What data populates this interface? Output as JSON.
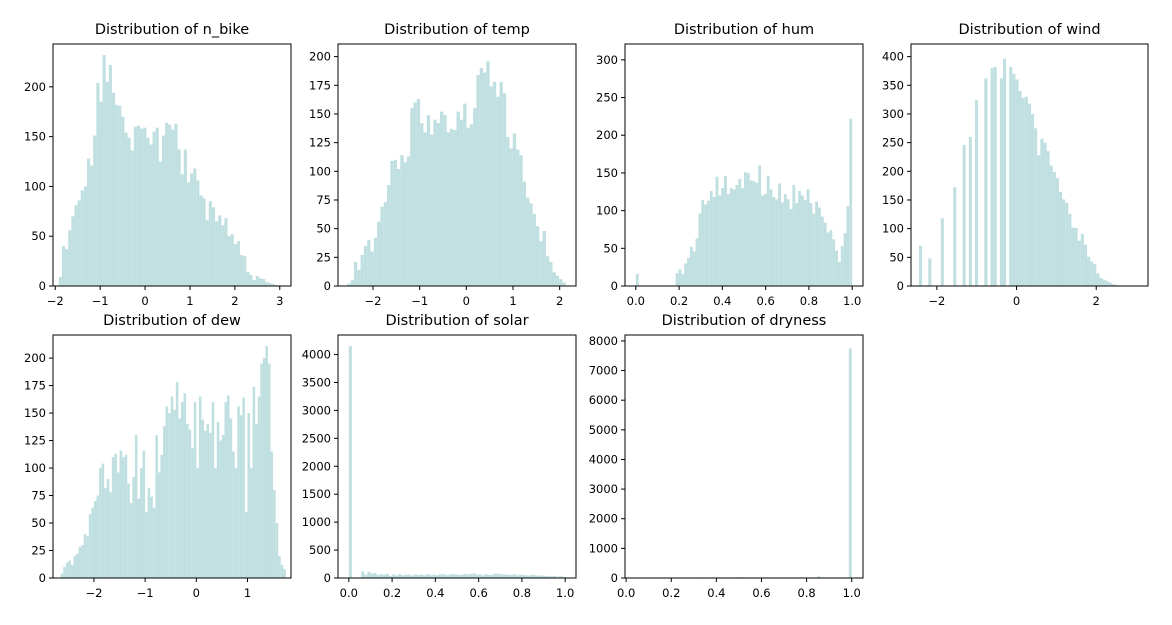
{
  "colors": {
    "bar": "#c0dfe0",
    "axes": "#000000",
    "background": "#ffffff"
  },
  "chart_data": [
    {
      "type": "histogram",
      "title": "Distribution of n_bike",
      "xlim": [
        -2.05,
        3.25
      ],
      "ylim": [
        0,
        243
      ],
      "xticks": [
        -2,
        -1,
        0,
        1,
        2,
        3
      ],
      "xtick_labels": [
        "−2",
        "−1",
        "0",
        "1",
        "2",
        "3"
      ],
      "yticks": [
        0,
        50,
        100,
        150,
        200
      ],
      "ytick_labels": [
        "0",
        "50",
        "100",
        "150",
        "200"
      ],
      "bin_edges": [
        -1.92,
        2.95
      ],
      "counts": [
        9,
        40,
        37,
        56,
        70,
        81,
        86,
        96,
        100,
        128,
        121,
        151,
        204,
        185,
        232,
        205,
        222,
        194,
        182,
        181,
        170,
        154,
        149,
        136,
        160,
        161,
        158,
        159,
        149,
        142,
        155,
        159,
        125,
        151,
        164,
        162,
        157,
        163,
        137,
        112,
        137,
        104,
        113,
        118,
        106,
        91,
        88,
        66,
        85,
        79,
        65,
        71,
        61,
        68,
        50,
        52,
        42,
        45,
        31,
        30,
        14,
        11,
        6,
        10,
        8,
        7,
        4,
        3,
        2,
        1
      ]
    },
    {
      "type": "histogram",
      "title": "Distribution of temp",
      "xlim": [
        -2.75,
        2.35
      ],
      "ylim": [
        0,
        211
      ],
      "xticks": [
        -2,
        -1,
        0,
        1,
        2
      ],
      "xtick_labels": [
        "−2",
        "−1",
        "0",
        "1",
        "2"
      ],
      "yticks": [
        0,
        25,
        50,
        75,
        100,
        125,
        150,
        175,
        200
      ],
      "ytick_labels": [
        "0",
        "25",
        "50",
        "75",
        "100",
        "125",
        "150",
        "175",
        "200"
      ],
      "bin_edges": [
        -2.55,
        2.13
      ],
      "counts": [
        2,
        5,
        21,
        14,
        27,
        35,
        40,
        30,
        42,
        56,
        69,
        73,
        88,
        109,
        110,
        102,
        114,
        108,
        113,
        155,
        160,
        163,
        142,
        134,
        149,
        132,
        145,
        142,
        152,
        149,
        134,
        137,
        136,
        152,
        145,
        159,
        138,
        141,
        155,
        184,
        190,
        186,
        196,
        174,
        178,
        165,
        178,
        168,
        130,
        120,
        133,
        119,
        114,
        91,
        77,
        72,
        63,
        52,
        39,
        48,
        26,
        21,
        12,
        9,
        6,
        3
      ]
    },
    {
      "type": "histogram",
      "title": "Distribution of hum",
      "xlim": [
        -0.05,
        1.05
      ],
      "ylim": [
        0,
        321
      ],
      "xticks": [
        0,
        0.2,
        0.4,
        0.6,
        0.8,
        1.0
      ],
      "xtick_labels": [
        "0.0",
        "0.2",
        "0.4",
        "0.6",
        "0.8",
        "1.0"
      ],
      "yticks": [
        0,
        50,
        100,
        150,
        200,
        250,
        300
      ],
      "ytick_labels": [
        "0",
        "50",
        "100",
        "150",
        "200",
        "250",
        "300"
      ],
      "bin_edges": [
        0,
        1
      ],
      "counts": [
        16,
        0,
        0,
        0,
        0,
        0,
        0,
        0,
        0,
        0,
        0,
        0,
        0,
        0,
        17,
        22,
        16,
        30,
        37,
        52,
        46,
        63,
        96,
        114,
        108,
        113,
        126,
        118,
        145,
        120,
        130,
        146,
        122,
        130,
        128,
        134,
        142,
        130,
        151,
        150,
        140,
        139,
        137,
        160,
        120,
        122,
        146,
        128,
        118,
        115,
        136,
        111,
        122,
        115,
        102,
        134,
        110,
        126,
        120,
        114,
        128,
        110,
        96,
        112,
        104,
        92,
        84,
        71,
        74,
        62,
        47,
        32,
        53,
        70,
        106,
        222
      ]
    },
    {
      "type": "histogram",
      "title": "Distribution of wind",
      "xlim": [
        -2.65,
        3.3
      ],
      "ylim": [
        0,
        422
      ],
      "xticks": [
        -2,
        0,
        2
      ],
      "xtick_labels": [
        "−2",
        "0",
        "2"
      ],
      "yticks": [
        0,
        50,
        100,
        150,
        200,
        250,
        300,
        350,
        400
      ],
      "ytick_labels": [
        "0",
        "50",
        "100",
        "150",
        "200",
        "250",
        "300",
        "350",
        "400"
      ],
      "bin_edges": [
        -2.45,
        2.55
      ],
      "counts": [
        70,
        0,
        0,
        48,
        0,
        0,
        0,
        118,
        0,
        0,
        0,
        172,
        0,
        0,
        246,
        0,
        260,
        0,
        324,
        0,
        0,
        362,
        0,
        380,
        382,
        0,
        362,
        396,
        0,
        382,
        370,
        360,
        340,
        328,
        330,
        318,
        300,
        275,
        228,
        257,
        250,
        235,
        210,
        199,
        188,
        164,
        151,
        145,
        126,
        102,
        101,
        79,
        91,
        72,
        51,
        43,
        38,
        22,
        14,
        11,
        9,
        6,
        3,
        2
      ]
    },
    {
      "type": "histogram",
      "title": "Distribution of dew",
      "xlim": [
        -2.8,
        1.85
      ],
      "ylim": [
        0,
        221
      ],
      "xticks": [
        -2,
        -1,
        0,
        1
      ],
      "xtick_labels": [
        "−2",
        "−1",
        "0",
        "1"
      ],
      "yticks": [
        0,
        25,
        50,
        75,
        100,
        125,
        150,
        175,
        200
      ],
      "ytick_labels": [
        "0",
        "25",
        "50",
        "75",
        "100",
        "125",
        "150",
        "175",
        "200"
      ],
      "bin_edges": [
        -2.65,
        1.75
      ],
      "counts": [
        4,
        10,
        14,
        16,
        12,
        20,
        22,
        28,
        30,
        40,
        38,
        58,
        64,
        70,
        75,
        100,
        104,
        82,
        90,
        78,
        110,
        113,
        96,
        116,
        110,
        112,
        86,
        68,
        92,
        130,
        72,
        100,
        116,
        60,
        82,
        74,
        64,
        130,
        96,
        112,
        138,
        156,
        150,
        165,
        153,
        178,
        145,
        160,
        168,
        140,
        135,
        118,
        160,
        100,
        165,
        144,
        134,
        140,
        132,
        160,
        100,
        142,
        125,
        130,
        160,
        166,
        145,
        115,
        100,
        156,
        148,
        164,
        60,
        150,
        100,
        174,
        140,
        165,
        195,
        200,
        211,
        195,
        115,
        80,
        50,
        20,
        12,
        8
      ]
    },
    {
      "type": "histogram",
      "title": "Distribution of solar",
      "xlim": [
        -0.05,
        1.05
      ],
      "ylim": [
        0,
        4350
      ],
      "xticks": [
        0,
        0.2,
        0.4,
        0.6,
        0.8,
        1.0
      ],
      "xtick_labels": [
        "0.0",
        "0.2",
        "0.4",
        "0.6",
        "0.8",
        "1.0"
      ],
      "yticks": [
        0,
        500,
        1000,
        1500,
        2000,
        2500,
        3000,
        3500,
        4000
      ],
      "ytick_labels": [
        "0",
        "500",
        "1000",
        "1500",
        "2000",
        "2500",
        "3000",
        "3500",
        "4000"
      ],
      "bin_edges": [
        0,
        1
      ],
      "counts": [
        4150,
        0,
        0,
        0,
        120,
        60,
        110,
        80,
        90,
        55,
        70,
        60,
        75,
        40,
        65,
        45,
        70,
        50,
        55,
        60,
        45,
        65,
        55,
        60,
        50,
        70,
        55,
        60,
        50,
        65,
        70,
        55,
        60,
        70,
        65,
        60,
        55,
        75,
        65,
        70,
        80,
        60,
        65,
        50,
        70,
        55,
        60,
        80,
        75,
        70,
        65,
        60,
        55,
        70,
        50,
        60,
        55,
        50,
        45,
        60,
        50,
        40,
        45,
        35,
        40,
        30,
        35,
        25,
        30,
        20
      ]
    },
    {
      "type": "histogram",
      "title": "Distribution of dryness",
      "xlim": [
        -0.005,
        1.05
      ],
      "ylim": [
        0,
        8200
      ],
      "xticks": [
        0,
        0.2,
        0.4,
        0.6,
        0.8,
        1.0
      ],
      "xtick_labels": [
        "0.0",
        "0.2",
        "0.4",
        "0.6",
        "0.8",
        "1.0"
      ],
      "yticks": [
        0,
        1000,
        2000,
        3000,
        4000,
        5000,
        6000,
        7000,
        8000
      ],
      "ytick_labels": [
        "0",
        "1000",
        "2000",
        "3000",
        "4000",
        "5000",
        "6000",
        "7000",
        "8000"
      ],
      "bin_edges": [
        0,
        1
      ],
      "counts": [
        15,
        10,
        8,
        6,
        5,
        8,
        6,
        5,
        6,
        7,
        9,
        5,
        6,
        8,
        10,
        6,
        8,
        7,
        9,
        10,
        12,
        8,
        10,
        15,
        12,
        10,
        18,
        14,
        12,
        16,
        20,
        15,
        18,
        22,
        20,
        25,
        20,
        22,
        25,
        30,
        28,
        25,
        20,
        18,
        16,
        22,
        18,
        20,
        14,
        12,
        10,
        15,
        10,
        8,
        12,
        10,
        8,
        6,
        8,
        6,
        5,
        8,
        6,
        5,
        6,
        5,
        8,
        60,
        10,
        8,
        6,
        5,
        4,
        5,
        6,
        8,
        10,
        12,
        7750
      ]
    }
  ]
}
